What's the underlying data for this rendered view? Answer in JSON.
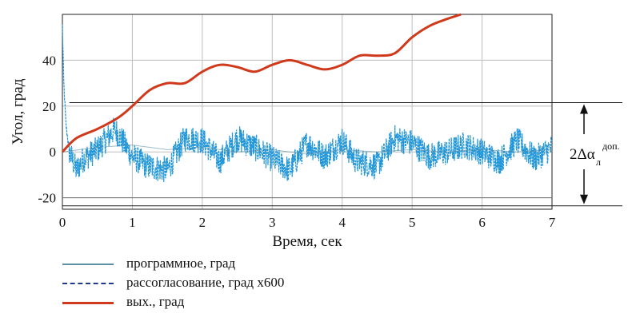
{
  "chart_data": {
    "type": "line",
    "xlabel": "Время, сек",
    "ylabel": "Угол, град",
    "xlim": [
      0,
      7
    ],
    "ylim": [
      -25,
      60
    ],
    "xticks": [
      "0",
      "1",
      "2",
      "3",
      "4",
      "5",
      "6",
      "7"
    ],
    "yticks": [
      "-20",
      "0",
      "20",
      "40"
    ],
    "grid": true,
    "series": [
      {
        "name": "программное, град",
        "color": "#5b8fa3",
        "style": "solid",
        "x": [
          0,
          0.5,
          1,
          1.5,
          2,
          2.5,
          3,
          3.5,
          4,
          4.5,
          5,
          5.5,
          6,
          6.5,
          7
        ],
        "y": [
          0,
          2,
          3,
          1,
          2,
          0,
          1,
          -1,
          1,
          0,
          1,
          0,
          1,
          0,
          1
        ]
      },
      {
        "name": "рассогласование, град x600",
        "color": "#2196d8",
        "style": "dashed",
        "x": [
          0,
          0.02,
          0.05,
          0.1,
          0.2,
          0.3,
          0.5,
          0.75,
          1.0,
          1.2,
          1.5,
          1.75,
          2.0,
          2.25,
          2.5,
          2.75,
          3.0,
          3.25,
          3.5,
          3.75,
          4.0,
          4.2,
          4.5,
          4.75,
          5.0,
          5.25,
          5.5,
          5.75,
          6.0,
          6.25,
          6.5,
          6.75,
          7.0
        ],
        "y": [
          55,
          30,
          12,
          0,
          -8,
          -3,
          1,
          10,
          -2,
          -6,
          -8,
          6,
          5,
          -4,
          6,
          2,
          -3,
          -8,
          4,
          -2,
          5,
          -4,
          -6,
          6,
          4,
          -2,
          0,
          3,
          0,
          -4,
          5,
          -3,
          2
        ]
      },
      {
        "name": "вых., град",
        "color": "#d03a1c",
        "style": "solid",
        "x": [
          0,
          0.2,
          0.5,
          0.8,
          1.0,
          1.25,
          1.5,
          1.75,
          2.0,
          2.25,
          2.5,
          2.75,
          3.0,
          3.25,
          3.5,
          3.75,
          4.0,
          4.25,
          4.5,
          4.75,
          5.0,
          5.25,
          5.5,
          5.7
        ],
        "y": [
          0,
          6,
          10,
          15,
          20,
          27,
          30,
          30,
          35,
          38,
          37,
          35,
          38,
          40,
          38,
          36,
          38,
          42,
          42,
          43,
          50,
          55,
          58,
          60
        ]
      }
    ],
    "hlines": [
      21.5,
      -23.5
    ],
    "annotation": {
      "text_main": "2Δα",
      "text_sub": "л",
      "text_sup": "доп.",
      "from": 21.5,
      "to": -23.5
    }
  }
}
